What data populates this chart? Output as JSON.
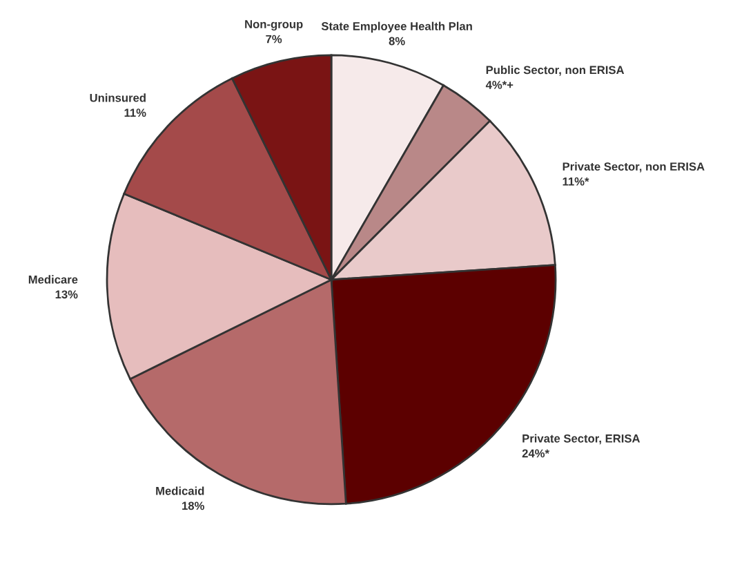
{
  "chart_data": {
    "type": "pie",
    "categories": [
      "State Employee Health Plan",
      "Public Sector, non ERISA",
      "Private Sector, non ERISA",
      "Private Sector, ERISA",
      "Medicaid",
      "Medicare",
      "Uninsured",
      "Non-group"
    ],
    "values": [
      8,
      4,
      11,
      24,
      18,
      13,
      11,
      7
    ],
    "value_labels": [
      "8%",
      "4%*+",
      "11%*",
      "24%*",
      "18%",
      "13%",
      "11%",
      "7%"
    ],
    "colors": [
      "#f6eaea",
      "#b98888",
      "#e9caca",
      "#5c0000",
      "#b56a6a",
      "#e6bdbd",
      "#a44a4a",
      "#7a1414"
    ],
    "legend": false
  }
}
